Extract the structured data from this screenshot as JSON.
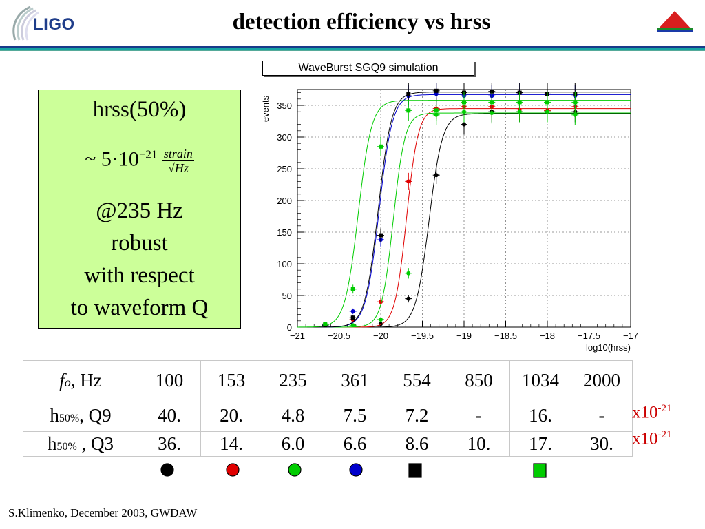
{
  "header": {
    "logo_text": "LIGO",
    "title": "detection efficiency vs hrss"
  },
  "left_panel": {
    "line1": "hrss(50%)",
    "formula": {
      "approx": "~",
      "mantissa": "5",
      "dot": "·",
      "base": "10",
      "exponent": "−21",
      "numerator": "strain",
      "denominator": "Hz",
      "radical": "√"
    },
    "lines": [
      "@235 Hz",
      "robust",
      "with respect",
      "to waveform Q"
    ]
  },
  "chart_data": {
    "type": "scatter",
    "title": "WaveBurst SGQ9 simulation",
    "xlabel": "log10(hrss)",
    "ylabel": "events",
    "xlim": [
      -21,
      -17
    ],
    "ylim": [
      0,
      375
    ],
    "xticks": [
      -21,
      -20.5,
      -20,
      -19.5,
      -19,
      -18.5,
      -18,
      -17.5,
      -17
    ],
    "xtick_labels": [
      "−21",
      "−20.5",
      "−20",
      "−19.5",
      "−19",
      "−18.5",
      "−18",
      "−17.5",
      "−17"
    ],
    "yticks": [
      0,
      50,
      100,
      150,
      200,
      250,
      300,
      350
    ],
    "ytick_labels": [
      "0",
      "50",
      "100",
      "150",
      "200",
      "250",
      "300",
      "350"
    ],
    "grid": true,
    "series": [
      {
        "color": "#000000",
        "marker": "circle",
        "x": [
          -20.333,
          -20,
          -19.667,
          -19.333,
          -19,
          -18.667,
          -18.333,
          -18,
          -17.667
        ],
        "y": [
          12,
          5,
          45,
          240,
          320,
          340,
          340,
          340,
          340
        ],
        "fit": {
          "plateau": 337,
          "mid": -19.42,
          "width": 0.08
        }
      },
      {
        "color": "#e00000",
        "marker": "circle",
        "x": [
          -20.333,
          -20,
          -19.667,
          -19.333,
          -19,
          -18.667,
          -18.333,
          -18,
          -17.667
        ],
        "y": [
          12,
          40,
          230,
          345,
          348,
          348,
          343,
          342,
          348
        ],
        "fit": {
          "plateau": 345,
          "mid": -19.69,
          "width": 0.07
        }
      },
      {
        "color": "#00cc00",
        "marker": "circle",
        "x": [
          -20.667,
          -20.333,
          -20,
          -19.667,
          -19.333,
          -19,
          -18.667,
          -18.333,
          -18,
          -17.667
        ],
        "y": [
          3,
          3,
          12,
          85,
          335,
          340,
          338,
          340,
          340,
          335
        ],
        "fit": {
          "plateau": 338,
          "mid": -19.85,
          "width": 0.07
        }
      },
      {
        "color": "#0000cc",
        "marker": "circle",
        "x": [
          -20.667,
          -20.333,
          -20,
          -19.667,
          -19.333,
          -19,
          -18.667,
          -18.333,
          -18,
          -17.667
        ],
        "y": [
          3,
          25,
          138,
          365,
          368,
          365,
          365,
          370,
          368,
          365
        ],
        "fit": {
          "plateau": 367,
          "mid": -20.02,
          "width": 0.08
        }
      },
      {
        "color": "#000000",
        "marker": "square",
        "x": [
          -20.667,
          -20.333,
          -20,
          -19.667,
          -19.333,
          -19,
          -18.667,
          -18.333,
          -18,
          -17.667
        ],
        "y": [
          3,
          15,
          145,
          368,
          373,
          370,
          372,
          370,
          368,
          368
        ],
        "fit": {
          "plateau": 371,
          "mid": -20.03,
          "width": 0.08
        }
      },
      {
        "color": "#00cc00",
        "marker": "square",
        "x": [
          -20.667,
          -20.333,
          -20,
          -19.667,
          -19.333,
          -19,
          -18.667,
          -18.333,
          -18,
          -17.667
        ],
        "y": [
          5,
          60,
          285,
          342,
          342,
          355,
          355,
          355,
          355,
          355
        ],
        "fit": {
          "plateau": 358,
          "mid": -20.27,
          "width": 0.08
        }
      }
    ]
  },
  "table": {
    "rows": [
      {
        "label_main": "f",
        "label_sub": "o",
        "label_rest": ", Hz",
        "cells": [
          "100",
          "153",
          "235",
          "361",
          "554",
          "850",
          "1034",
          "2000"
        ]
      },
      {
        "label_main": "h",
        "label_sub": "50%",
        "label_rest": ", Q9",
        "cells": [
          "40.",
          "20.",
          "4.8",
          "7.5",
          "7.2",
          "-",
          "16.",
          "-"
        ]
      },
      {
        "label_main": "h",
        "label_sub": "50%",
        "label_rest": " , Q3",
        "cells": [
          "36.",
          "14.",
          "6.0",
          "6.6",
          "8.6",
          "10.",
          "17.",
          "30."
        ]
      }
    ]
  },
  "units": [
    {
      "base": "x10",
      "exp": "-21"
    },
    {
      "base": "x10",
      "exp": "-21"
    }
  ],
  "legend_markers": [
    {
      "shape": "circle",
      "color": "#000000"
    },
    {
      "shape": "circle",
      "color": "#e00000"
    },
    {
      "shape": "circle",
      "color": "#00cc00"
    },
    {
      "shape": "circle",
      "color": "#0000cc"
    },
    {
      "shape": "square",
      "color": "#000000"
    },
    {
      "shape": "square",
      "color": "#00cc00"
    }
  ],
  "footer": "S.Klimenko, December 2003, GWDAW"
}
